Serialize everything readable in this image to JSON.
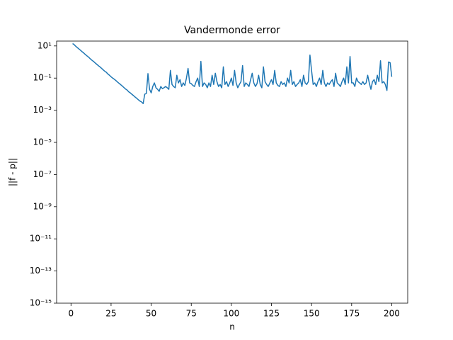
{
  "chart_data": {
    "type": "line",
    "title": "Vandermonde error",
    "x_label": "n",
    "y_label": "||f - p||",
    "yscale": "log",
    "color": "#1f77b4",
    "grid": false,
    "xlim": [
      -8.95,
      209.95
    ],
    "xticks": [
      0,
      25,
      50,
      75,
      100,
      125,
      150,
      175,
      200
    ],
    "ylim": [
      1e-15,
      20
    ],
    "yticks": [
      {
        "value": 10,
        "label": "10¹"
      },
      {
        "value": 0.1,
        "label": "10⁻¹"
      },
      {
        "value": 0.001,
        "label": "10⁻³"
      },
      {
        "value": 1e-05,
        "label": "10⁻⁵"
      },
      {
        "value": 1e-07,
        "label": "10⁻⁷"
      },
      {
        "value": 1e-09,
        "label": "10⁻⁹"
      },
      {
        "value": 1e-11,
        "label": "10⁻¹¹"
      },
      {
        "value": 1e-13,
        "label": "10⁻¹³"
      },
      {
        "value": 1e-15,
        "label": "10⁻¹⁵"
      }
    ],
    "x": [
      1,
      2,
      3,
      4,
      5,
      6,
      7,
      8,
      9,
      10,
      11,
      12,
      13,
      14,
      15,
      16,
      17,
      18,
      19,
      20,
      21,
      22,
      23,
      24,
      25,
      26,
      27,
      28,
      29,
      30,
      31,
      32,
      33,
      34,
      35,
      36,
      37,
      38,
      39,
      40,
      41,
      42,
      43,
      44,
      45,
      46,
      47,
      48,
      49,
      50,
      51,
      52,
      53,
      54,
      55,
      56,
      57,
      58,
      59,
      60,
      61,
      62,
      63,
      64,
      65,
      66,
      67,
      68,
      69,
      70,
      71,
      72,
      73,
      74,
      75,
      76,
      77,
      78,
      79,
      80,
      81,
      82,
      83,
      84,
      85,
      86,
      87,
      88,
      89,
      90,
      91,
      92,
      93,
      94,
      95,
      96,
      97,
      98,
      99,
      100,
      101,
      102,
      103,
      104,
      105,
      106,
      107,
      108,
      109,
      110,
      111,
      112,
      113,
      114,
      115,
      116,
      117,
      118,
      119,
      120,
      121,
      122,
      123,
      124,
      125,
      126,
      127,
      128,
      129,
      130,
      131,
      132,
      133,
      134,
      135,
      136,
      137,
      138,
      139,
      140,
      141,
      142,
      143,
      144,
      145,
      146,
      147,
      148,
      149,
      150,
      151,
      152,
      153,
      154,
      155,
      156,
      157,
      158,
      159,
      160,
      161,
      162,
      163,
      164,
      165,
      166,
      167,
      168,
      169,
      170,
      171,
      172,
      173,
      174,
      175,
      176,
      177,
      178,
      179,
      180,
      181,
      182,
      183,
      184,
      185,
      186,
      187,
      188,
      189,
      190,
      191,
      192,
      193,
      194,
      195,
      196,
      197,
      198,
      199,
      200
    ],
    "values": [
      14,
      12,
      9.5,
      7.8,
      6.4,
      5.3,
      4.3,
      3.6,
      2.9,
      2.4,
      2.0,
      1.6,
      1.3,
      1.1,
      0.89,
      0.73,
      0.6,
      0.5,
      0.41,
      0.33,
      0.27,
      0.23,
      0.18,
      0.15,
      0.12,
      0.1,
      0.085,
      0.07,
      0.057,
      0.047,
      0.039,
      0.032,
      0.026,
      0.021,
      0.018,
      0.014,
      0.012,
      0.0098,
      0.0081,
      0.0066,
      0.0055,
      0.0045,
      0.0037,
      0.0033,
      0.0026,
      0.01,
      0.011,
      0.19,
      0.02,
      0.012,
      0.03,
      0.05,
      0.025,
      0.02,
      0.015,
      0.03,
      0.022,
      0.025,
      0.03,
      0.025,
      0.02,
      0.3,
      0.04,
      0.03,
      0.025,
      0.15,
      0.05,
      0.08,
      0.03,
      0.05,
      0.035,
      0.1,
      0.4,
      0.05,
      0.045,
      0.035,
      0.03,
      0.06,
      0.1,
      0.03,
      1.1,
      0.03,
      0.05,
      0.04,
      0.025,
      0.05,
      0.03,
      0.15,
      0.04,
      0.2,
      0.06,
      0.03,
      0.04,
      0.025,
      0.5,
      0.04,
      0.06,
      0.03,
      0.05,
      0.1,
      0.035,
      0.3,
      0.05,
      0.025,
      0.04,
      0.06,
      0.6,
      0.03,
      0.05,
      0.04,
      0.03,
      0.08,
      0.2,
      0.05,
      0.03,
      0.045,
      0.15,
      0.04,
      0.025,
      0.5,
      0.06,
      0.04,
      0.03,
      0.05,
      0.08,
      0.04,
      0.3,
      0.05,
      0.035,
      0.03,
      0.06,
      0.04,
      0.05,
      0.03,
      0.1,
      0.05,
      0.3,
      0.04,
      0.06,
      0.03,
      0.04,
      0.05,
      0.08,
      0.03,
      0.15,
      0.05,
      0.04,
      0.06,
      2.7,
      0.3,
      0.04,
      0.05,
      0.03,
      0.06,
      0.1,
      0.04,
      0.3,
      0.05,
      0.03,
      0.05,
      0.04,
      0.06,
      0.08,
      0.03,
      0.2,
      0.05,
      0.04,
      0.03,
      0.06,
      0.1,
      0.04,
      0.5,
      0.05,
      2.2,
      0.05,
      0.05,
      0.03,
      0.1,
      0.06,
      0.05,
      0.04,
      0.06,
      0.04,
      0.05,
      0.15,
      0.05,
      0.02,
      0.06,
      0.08,
      0.04,
      0.15,
      0.06,
      1.2,
      0.05,
      0.06,
      0.04,
      0.017,
      1.0,
      0.9,
      0.12
    ]
  }
}
